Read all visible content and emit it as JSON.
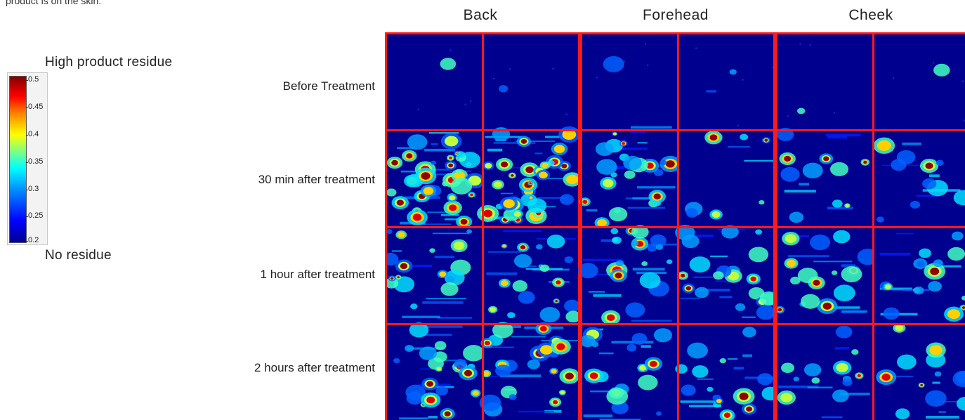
{
  "caption": "product is on the skin.",
  "legend": {
    "top_label": "High product residue",
    "bottom_label": "No residue",
    "ticks": [
      "0.5",
      "0.45",
      "0.4",
      "0.35",
      "0.3",
      "0.25",
      "0.2"
    ]
  },
  "columns": [
    "Back",
    "Forehead",
    "Cheek"
  ],
  "rows": [
    "Before Treatment",
    "30 min after treatment",
    "1 hour after treatment",
    "2 hours after treatment"
  ],
  "colors": {
    "background_blue": "#00008f",
    "grid_line": "#ff1a1a",
    "high": "#800000",
    "low": "#00008f"
  }
}
